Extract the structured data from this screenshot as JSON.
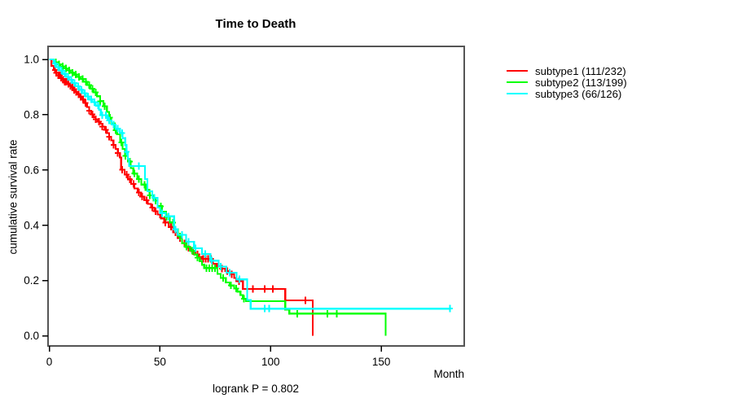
{
  "title": "Time to Death",
  "footer_annotation": "logrank P = 0.802",
  "legend": [
    {
      "label": "subtype1 (111/232)",
      "color": "#ff0000"
    },
    {
      "label": "subtype2 (113/199)",
      "color": "#00ff00"
    },
    {
      "label": "subtype3 (66/126)",
      "color": "#00ffff"
    }
  ],
  "chart_data": {
    "type": "line",
    "variant": "kaplan_meier_step",
    "title": "Time to Death",
    "xlabel": "Month",
    "ylabel": "cumulative survival rate",
    "annotation": "logrank P = 0.802",
    "xlim": [
      0,
      187.5
    ],
    "ylim": [
      0,
      1.04
    ],
    "grid": false,
    "legend_position": "right-outside",
    "x_ticks": [
      {
        "label": "0",
        "value": 0
      },
      {
        "label": "50",
        "value": 50
      },
      {
        "label": "100",
        "value": 100
      },
      {
        "label": "150",
        "value": 150
      }
    ],
    "y_ticks": [
      {
        "label": "0.0",
        "value": 0.0
      },
      {
        "label": "0.2",
        "value": 0.2
      },
      {
        "label": "0.4",
        "value": 0.4
      },
      {
        "label": "0.6",
        "value": 0.6
      },
      {
        "label": "0.8",
        "value": 0.8
      },
      {
        "label": "1.0",
        "value": 1.0
      }
    ],
    "series": [
      {
        "name": "subtype1 (111/232)",
        "color": "#ff0000",
        "events_total": "111/232",
        "end_month": 119,
        "steps": [
          [
            0,
            1.0
          ],
          [
            1,
            0.976
          ],
          [
            2,
            0.962
          ],
          [
            3,
            0.952
          ],
          [
            4,
            0.943
          ],
          [
            5,
            0.934
          ],
          [
            6,
            0.926
          ],
          [
            7,
            0.919
          ],
          [
            8,
            0.912
          ],
          [
            9,
            0.905
          ],
          [
            10,
            0.898
          ],
          [
            11,
            0.89
          ],
          [
            12,
            0.882
          ],
          [
            13,
            0.874
          ],
          [
            14,
            0.865
          ],
          [
            15,
            0.855
          ],
          [
            16,
            0.842
          ],
          [
            17,
            0.828
          ],
          [
            18,
            0.814
          ],
          [
            19,
            0.801
          ],
          [
            20,
            0.791
          ],
          [
            21,
            0.783
          ],
          [
            22,
            0.775
          ],
          [
            23,
            0.767
          ],
          [
            24,
            0.757
          ],
          [
            25,
            0.745
          ],
          [
            26,
            0.733
          ],
          [
            27,
            0.72
          ],
          [
            28,
            0.707
          ],
          [
            29,
            0.691
          ],
          [
            30,
            0.676
          ],
          [
            31,
            0.661
          ],
          [
            31.9,
            0.645
          ],
          [
            32.5,
            0.601
          ],
          [
            34,
            0.583
          ],
          [
            35.5,
            0.566
          ],
          [
            37,
            0.549
          ],
          [
            38.5,
            0.533
          ],
          [
            40,
            0.518
          ],
          [
            41.5,
            0.504
          ],
          [
            43,
            0.49
          ],
          [
            44.5,
            0.477
          ],
          [
            46,
            0.464
          ],
          [
            47.5,
            0.451
          ],
          [
            49,
            0.439
          ],
          [
            50.5,
            0.425
          ],
          [
            52,
            0.41
          ],
          [
            54,
            0.394
          ],
          [
            56,
            0.374
          ],
          [
            58,
            0.354
          ],
          [
            60,
            0.334
          ],
          [
            62,
            0.318
          ],
          [
            64,
            0.306
          ],
          [
            66,
            0.294
          ],
          [
            67.5,
            0.285
          ],
          [
            68.8,
            0.278
          ],
          [
            74,
            0.261
          ],
          [
            75.5,
            0.251
          ],
          [
            77.5,
            0.243
          ],
          [
            79.5,
            0.234
          ],
          [
            81.5,
            0.222
          ],
          [
            83.5,
            0.209
          ],
          [
            84.5,
            0.198
          ],
          [
            87.5,
            0.169
          ],
          [
            106.6,
            0.128
          ],
          [
            119,
            0
          ]
        ],
        "censor_months": [
          2.5,
          3.2,
          4,
          4.7,
          5.4,
          6.2,
          7,
          7.8,
          8.6,
          9.5,
          10.4,
          11.3,
          12.2,
          13.2,
          14.2,
          15.3,
          16.4,
          18,
          19.5,
          21,
          22.5,
          24,
          25.5,
          27,
          29,
          31,
          33,
          35,
          36.5,
          38,
          40.5,
          42,
          44,
          46.5,
          48,
          50,
          52.5,
          55,
          57,
          59,
          61,
          63,
          65,
          67,
          69.5,
          70.6,
          71.8,
          73,
          76,
          78,
          80.5,
          82.5,
          85.7,
          92,
          97.4,
          101,
          115.8
        ]
      },
      {
        "name": "subtype2 (113/199)",
        "color": "#00ff00",
        "events_total": "113/199",
        "end_month": 152,
        "steps": [
          [
            0,
            1.0
          ],
          [
            2,
            0.99
          ],
          [
            3.5,
            0.982
          ],
          [
            5,
            0.975
          ],
          [
            6.5,
            0.968
          ],
          [
            8,
            0.96
          ],
          [
            9.5,
            0.952
          ],
          [
            11,
            0.945
          ],
          [
            12.5,
            0.937
          ],
          [
            14,
            0.929
          ],
          [
            15.5,
            0.919
          ],
          [
            17,
            0.907
          ],
          [
            18.5,
            0.894
          ],
          [
            20,
            0.881
          ],
          [
            21.5,
            0.867
          ],
          [
            23,
            0.849
          ],
          [
            24.5,
            0.831
          ],
          [
            26,
            0.81
          ],
          [
            27,
            0.789
          ],
          [
            28,
            0.768
          ],
          [
            29.5,
            0.744
          ],
          [
            30.6,
            0.729
          ],
          [
            32,
            0.7
          ],
          [
            33.1,
            0.676
          ],
          [
            34.3,
            0.651
          ],
          [
            35.5,
            0.631
          ],
          [
            36.8,
            0.607
          ],
          [
            38,
            0.587
          ],
          [
            39.8,
            0.567
          ],
          [
            41.6,
            0.547
          ],
          [
            43.5,
            0.528
          ],
          [
            45.3,
            0.508
          ],
          [
            47.2,
            0.489
          ],
          [
            49,
            0.469
          ],
          [
            50.9,
            0.449
          ],
          [
            52.7,
            0.43
          ],
          [
            54.5,
            0.41
          ],
          [
            56.4,
            0.385
          ],
          [
            58.2,
            0.36
          ],
          [
            60,
            0.335
          ],
          [
            61.5,
            0.322
          ],
          [
            63.6,
            0.308
          ],
          [
            65.5,
            0.294
          ],
          [
            66.8,
            0.283
          ],
          [
            68,
            0.27
          ],
          [
            69,
            0.257
          ],
          [
            70,
            0.245
          ],
          [
            76,
            0.224
          ],
          [
            77.5,
            0.209
          ],
          [
            79.8,
            0.193
          ],
          [
            81.5,
            0.182
          ],
          [
            83.5,
            0.171
          ],
          [
            85,
            0.16
          ],
          [
            86.4,
            0.147
          ],
          [
            87.5,
            0.134
          ],
          [
            89,
            0.125
          ],
          [
            106.6,
            0.095
          ],
          [
            108.5,
            0.08
          ],
          [
            152,
            0
          ]
        ],
        "censor_months": [
          3,
          4.5,
          6,
          7.5,
          9,
          10.5,
          12,
          13.5,
          15,
          16.5,
          18,
          19.5,
          21,
          23,
          25,
          27.5,
          30,
          32.5,
          34.5,
          36.5,
          38.5,
          40.5,
          43,
          45.5,
          48,
          50.5,
          53,
          56,
          59,
          62,
          64.5,
          67,
          71,
          72.3,
          73.6,
          74.8,
          78.5,
          82,
          84.5,
          88,
          112.1,
          125.6,
          129.9
        ]
      },
      {
        "name": "subtype3 (66/126)",
        "color": "#00ffff",
        "events_total": "66/126",
        "end_month": 181,
        "steps": [
          [
            0,
            1.0
          ],
          [
            2,
            0.985
          ],
          [
            3,
            0.972
          ],
          [
            4.5,
            0.96
          ],
          [
            6,
            0.948
          ],
          [
            7.5,
            0.937
          ],
          [
            9,
            0.926
          ],
          [
            10.5,
            0.915
          ],
          [
            12,
            0.903
          ],
          [
            13.5,
            0.89
          ],
          [
            15,
            0.878
          ],
          [
            16.5,
            0.866
          ],
          [
            18,
            0.855
          ],
          [
            19.5,
            0.845
          ],
          [
            21,
            0.833
          ],
          [
            22.5,
            0.818
          ],
          [
            23.3,
            0.798
          ],
          [
            26.4,
            0.779
          ],
          [
            28.2,
            0.764
          ],
          [
            30,
            0.749
          ],
          [
            31.9,
            0.734
          ],
          [
            33.1,
            0.715
          ],
          [
            34.3,
            0.69
          ],
          [
            34.9,
            0.665
          ],
          [
            35.5,
            0.641
          ],
          [
            36.1,
            0.614
          ],
          [
            43.2,
            0.567
          ],
          [
            44.3,
            0.523
          ],
          [
            46.6,
            0.499
          ],
          [
            49,
            0.464
          ],
          [
            50,
            0.444
          ],
          [
            52.6,
            0.432
          ],
          [
            56.4,
            0.385
          ],
          [
            58,
            0.365
          ],
          [
            61.8,
            0.34
          ],
          [
            65.4,
            0.317
          ],
          [
            69,
            0.296
          ],
          [
            72.8,
            0.272
          ],
          [
            76.5,
            0.25
          ],
          [
            80,
            0.228
          ],
          [
            84.6,
            0.204
          ],
          [
            89.4,
            0.13
          ],
          [
            91,
            0.098
          ]
        ],
        "censor_months": [
          2.5,
          4,
          5.5,
          7,
          8.5,
          10,
          11.5,
          13,
          14.5,
          16,
          17.5,
          19,
          20.5,
          22,
          24,
          25.5,
          27,
          29,
          31,
          33,
          35,
          40.4,
          47.5,
          51,
          54,
          57,
          60,
          63,
          66,
          70.5,
          73.5,
          77.5,
          81.5,
          86,
          97.4,
          99.3,
          181
        ]
      }
    ]
  }
}
